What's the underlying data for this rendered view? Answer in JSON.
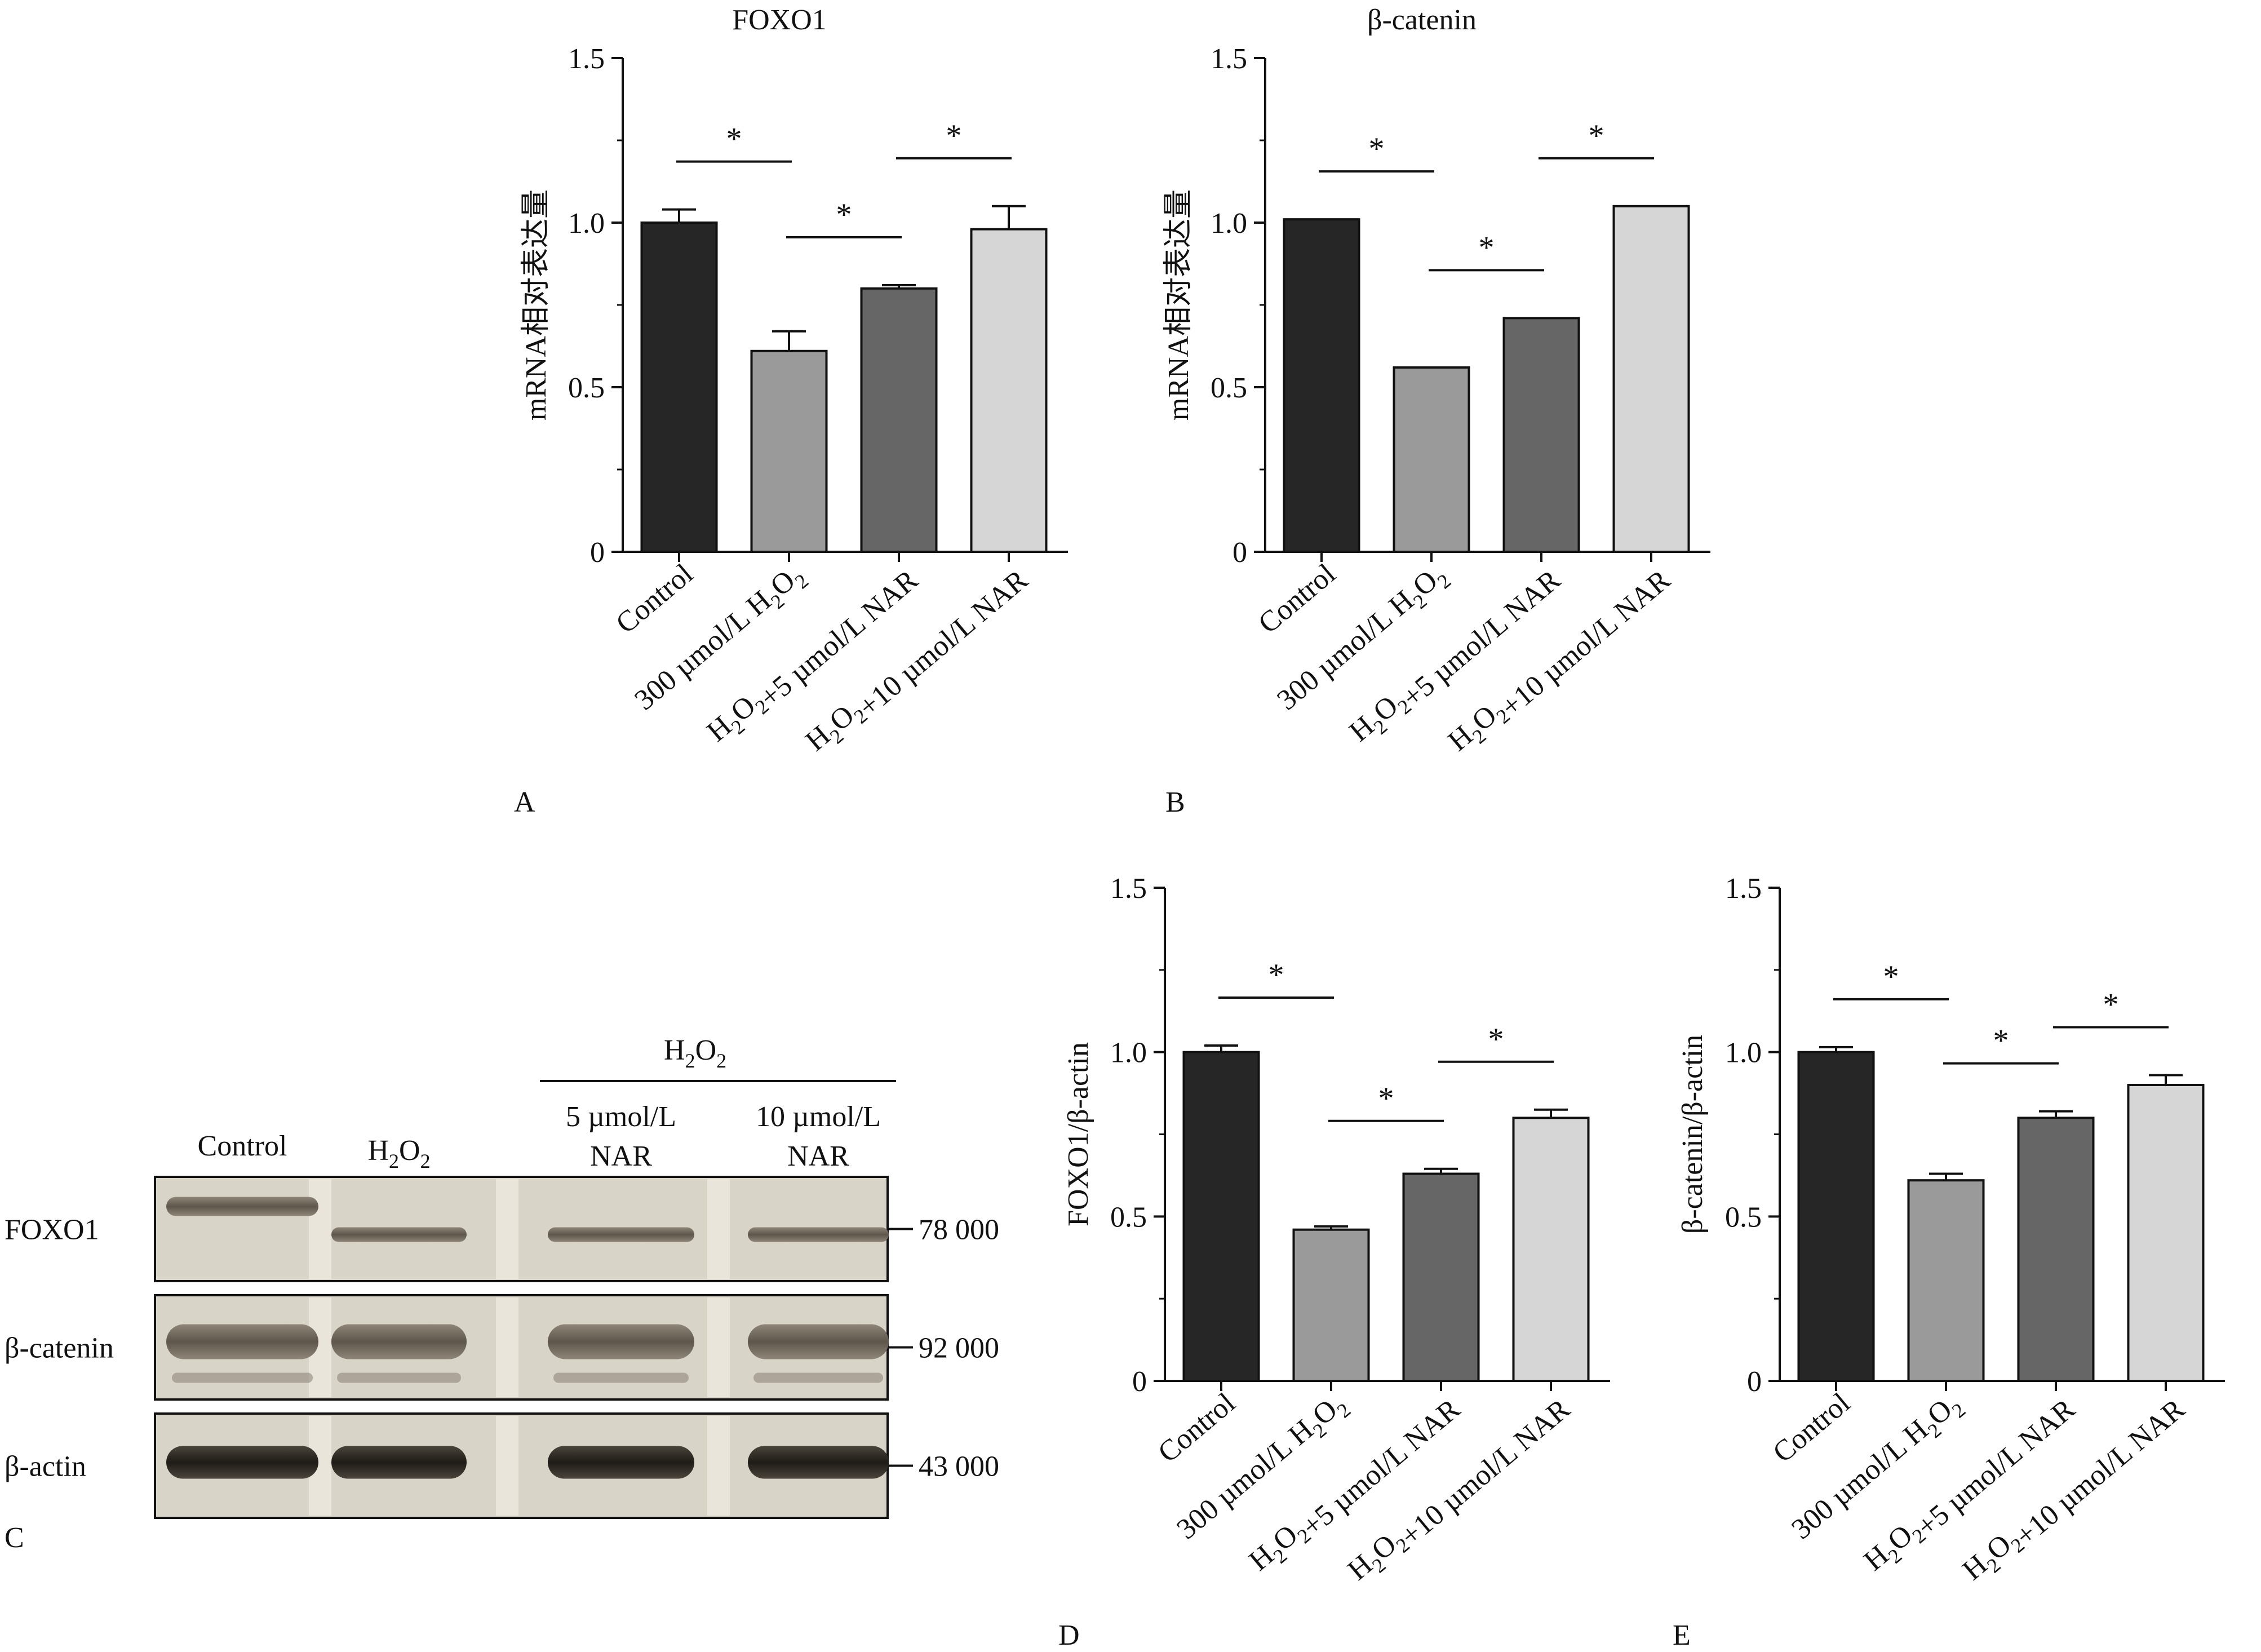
{
  "panels": {
    "A": "A",
    "B": "B",
    "C": "C",
    "D": "D",
    "E": "E"
  },
  "blot": {
    "lanes": [
      "Control",
      "H2O2",
      "5 µmol/L NAR",
      "10 µmol/L NAR"
    ],
    "treatment_header": "H2O2",
    "lane_labels": {
      "control": "Control",
      "h2o2_main": "H",
      "h2o2_sub1": "2",
      "h2o2_sub2": "O",
      "h2o2_sub3": "2",
      "grp_main": "H",
      "grp_sub1": "2",
      "grp_o": "O",
      "grp_sub2": "2",
      "l3_line1": "5 µmol/L",
      "l3_line2": "NAR",
      "l4_line1": "10 µmol/L",
      "l4_line2": "NAR"
    },
    "rows": [
      {
        "protein": "FOXO1",
        "mw": "78 000"
      },
      {
        "protein": "β-catenin",
        "mw": "92 000"
      },
      {
        "protein": "β-actin",
        "mw": "43 000"
      }
    ]
  },
  "chart_data": [
    {
      "panel": "A",
      "type": "bar",
      "title": "FOXO1",
      "ylabel": "mRNA相对表达量",
      "xlabel": "",
      "ylim": [
        0,
        1.5
      ],
      "yticks": [
        "0",
        "0.5",
        "1.0",
        "1.5"
      ],
      "categories": [
        "Control",
        "300 µmol/L H2O2",
        "H2O2+5 µmol/L NAR",
        "H2O2+10 µmol/L NAR"
      ],
      "values": [
        1.0,
        0.61,
        0.8,
        0.98
      ],
      "errors": [
        0.04,
        0.06,
        0.01,
        0.07
      ],
      "colors": [
        "#262626",
        "#9a9a9a",
        "#666666",
        "#d6d6d6"
      ],
      "significance": [
        {
          "from": 0,
          "to": 1,
          "label": "*"
        },
        {
          "from": 1,
          "to": 2,
          "label": "*"
        },
        {
          "from": 2,
          "to": 3,
          "label": "*"
        }
      ]
    },
    {
      "panel": "B",
      "type": "bar",
      "title": "β-catenin",
      "ylabel": "mRNA相对表达量",
      "xlabel": "",
      "ylim": [
        0,
        1.5
      ],
      "yticks": [
        "0",
        "0.5",
        "1.0",
        "1.5"
      ],
      "categories": [
        "Control",
        "300 µmol/L H2O2",
        "H2O2+5 µmol/L NAR",
        "H2O2+10 µmol/L NAR"
      ],
      "values": [
        1.01,
        0.56,
        0.71,
        1.05
      ],
      "errors": [
        0,
        0,
        0,
        0
      ],
      "colors": [
        "#262626",
        "#9a9a9a",
        "#666666",
        "#d6d6d6"
      ],
      "significance": [
        {
          "from": 0,
          "to": 1,
          "label": "*"
        },
        {
          "from": 1,
          "to": 2,
          "label": "*"
        },
        {
          "from": 2,
          "to": 3,
          "label": "*"
        }
      ]
    },
    {
      "panel": "D",
      "type": "bar",
      "title": "",
      "ylabel": "FOXO1/β-actin",
      "xlabel": "",
      "ylim": [
        0,
        1.5
      ],
      "yticks": [
        "0",
        "0.5",
        "1.0",
        "1.5"
      ],
      "categories": [
        "Control",
        "300 µmol/L H2O2",
        "H2O2+5 µmol/L NAR",
        "H2O2+10 µmol/L NAR"
      ],
      "values": [
        1.0,
        0.46,
        0.63,
        0.8
      ],
      "errors": [
        0.02,
        0.01,
        0.015,
        0.025
      ],
      "colors": [
        "#262626",
        "#9a9a9a",
        "#666666",
        "#d6d6d6"
      ],
      "significance": [
        {
          "from": 0,
          "to": 1,
          "label": "*"
        },
        {
          "from": 1,
          "to": 2,
          "label": "*"
        },
        {
          "from": 2,
          "to": 3,
          "label": "*"
        }
      ]
    },
    {
      "panel": "E",
      "type": "bar",
      "title": "",
      "ylabel": "β-catenin/β-actin",
      "xlabel": "",
      "ylim": [
        0,
        1.5
      ],
      "yticks": [
        "0",
        "0.5",
        "1.0",
        "1.5"
      ],
      "categories": [
        "Control",
        "300 µmol/L H2O2",
        "H2O2+5 µmol/L NAR",
        "H2O2+10 µmol/L NAR"
      ],
      "values": [
        1.0,
        0.61,
        0.8,
        0.9
      ],
      "errors": [
        0.015,
        0.02,
        0.02,
        0.03
      ],
      "colors": [
        "#262626",
        "#9a9a9a",
        "#666666",
        "#d6d6d6"
      ],
      "significance": [
        {
          "from": 0,
          "to": 1,
          "label": "*"
        },
        {
          "from": 1,
          "to": 2,
          "label": "*"
        },
        {
          "from": 2,
          "to": 3,
          "label": "*"
        }
      ]
    }
  ]
}
